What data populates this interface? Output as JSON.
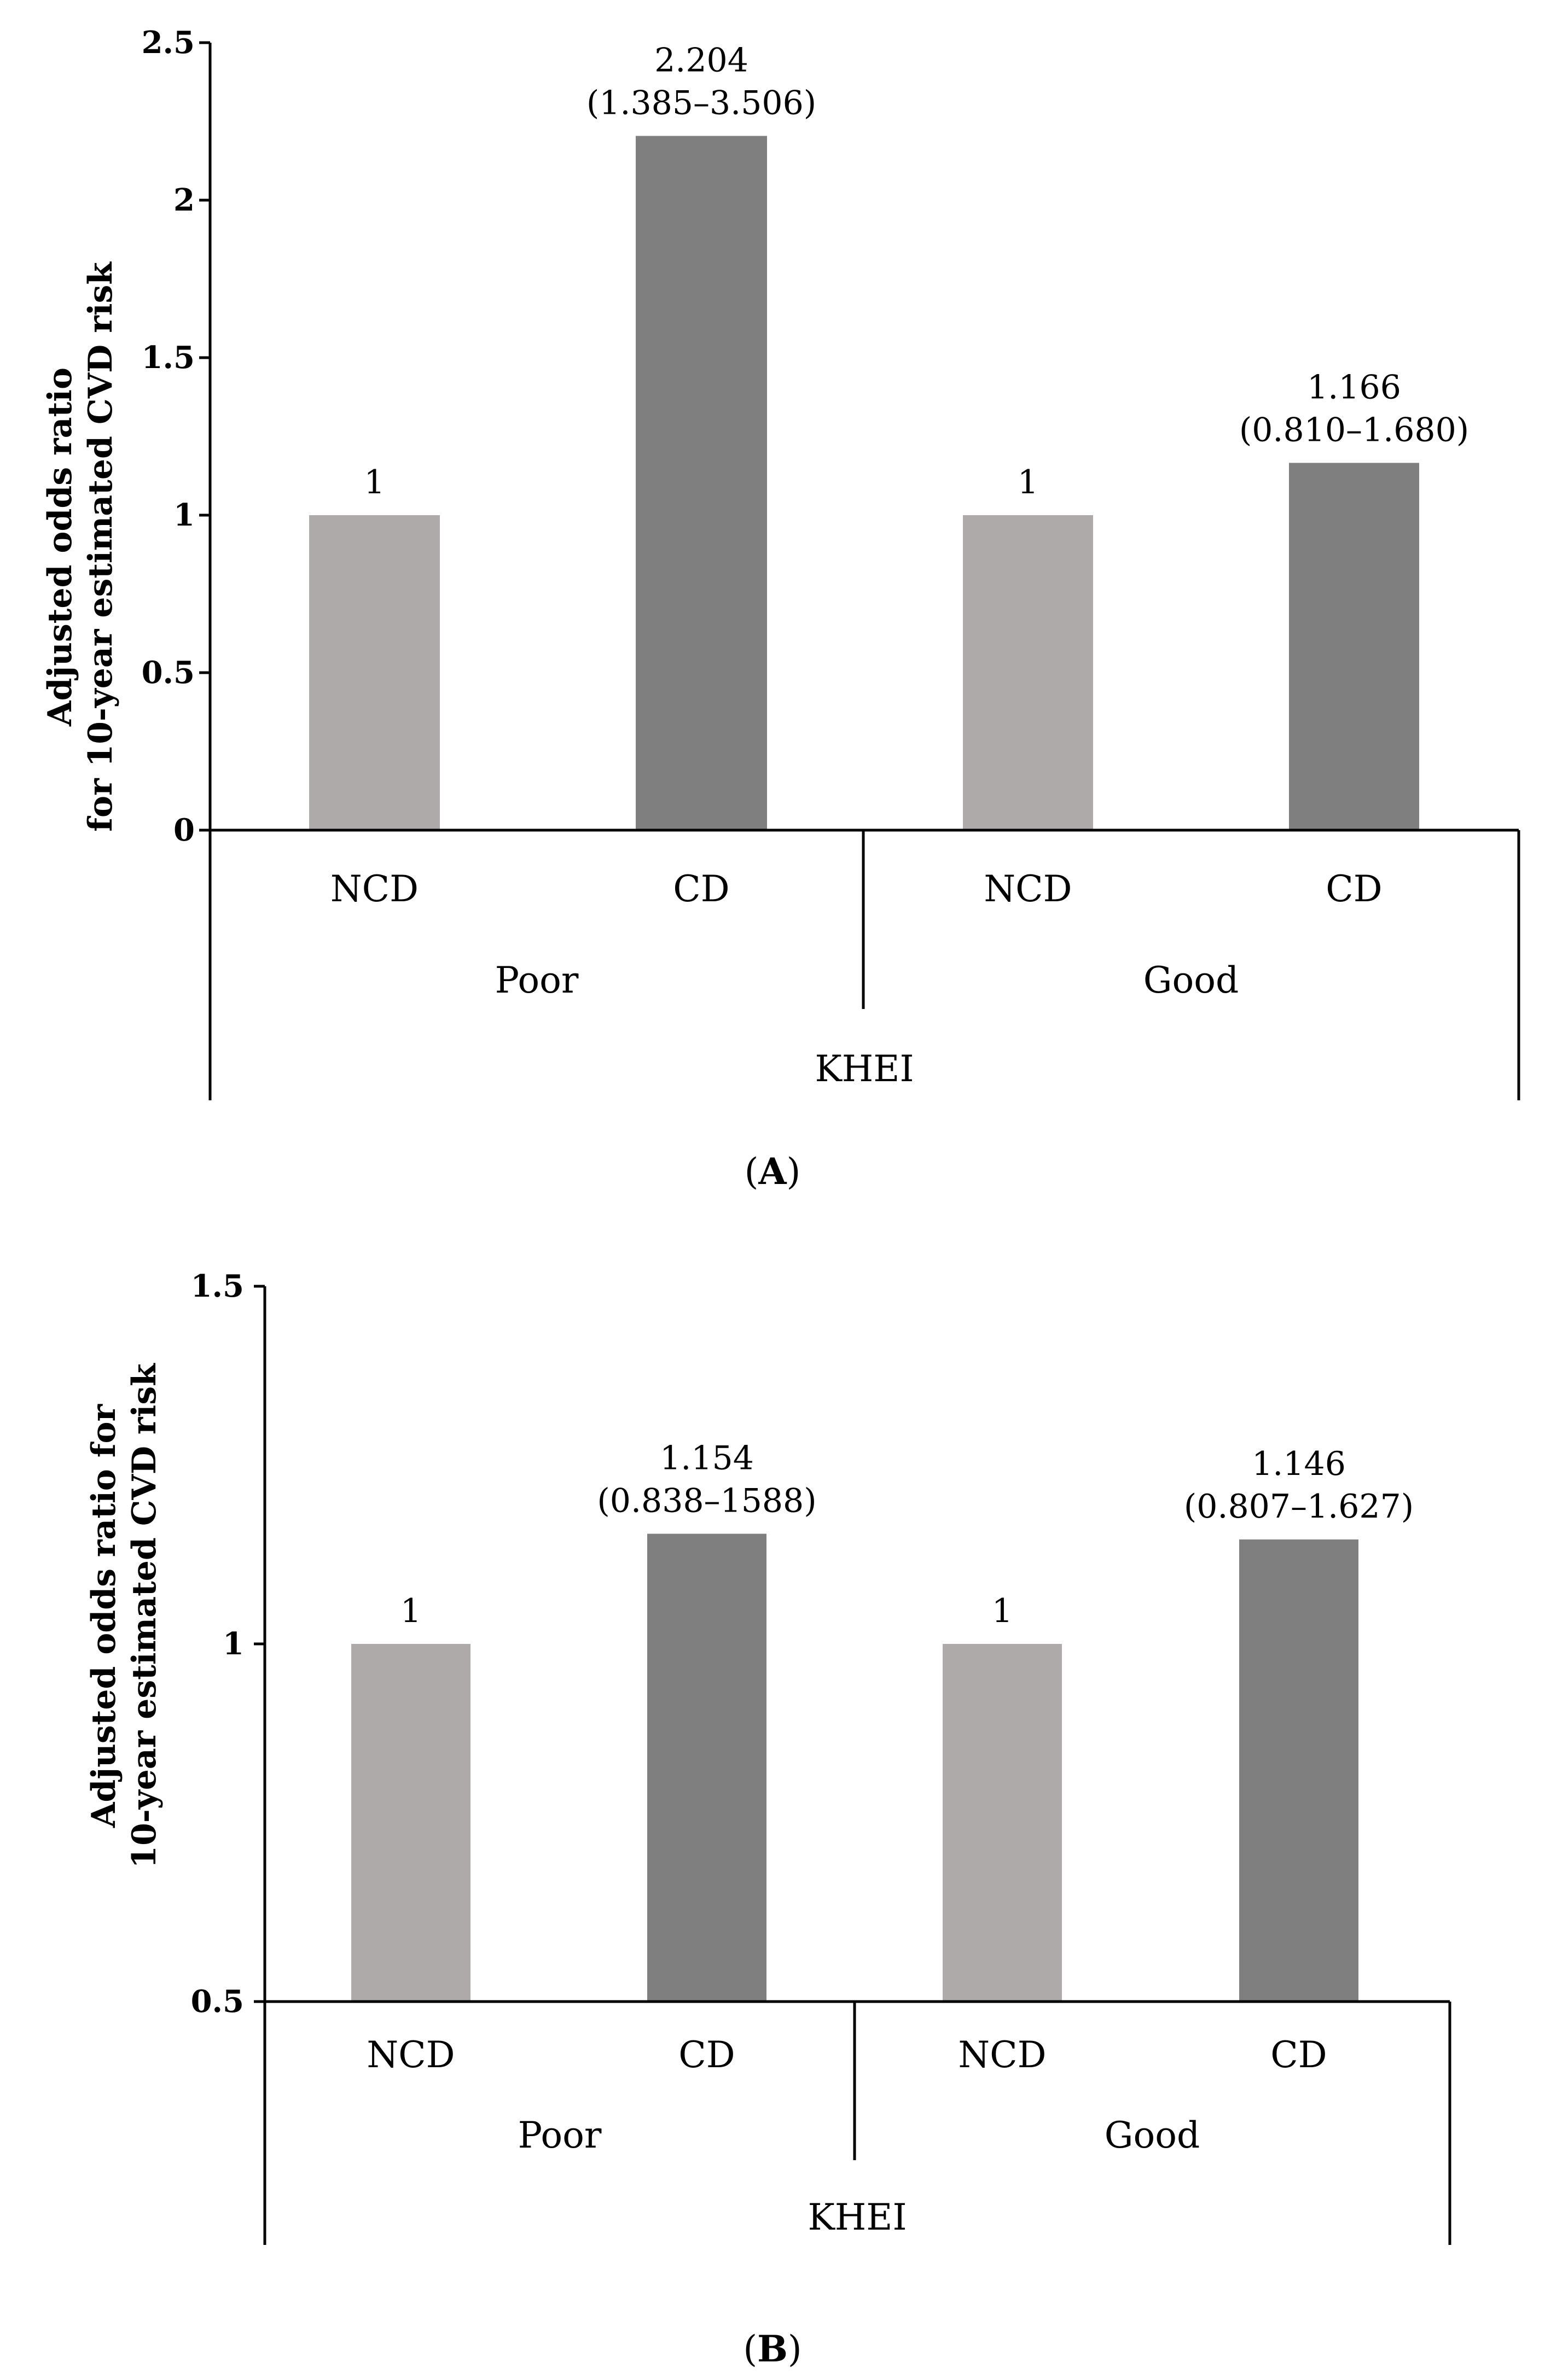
{
  "chart_data": [
    {
      "type": "bar",
      "panel_label": "A",
      "ylabel_lines": [
        "Adjusted odds ratio",
        "for 10-year estimated CVD risk"
      ],
      "ylim": [
        0,
        2.5
      ],
      "yticks": [
        "0",
        "0.5",
        "1",
        "1.5",
        "2",
        "2.5"
      ],
      "ytick_values": [
        0,
        0.5,
        1,
        1.5,
        2,
        2.5
      ],
      "categories": [
        "NCD",
        "CD",
        "NCD",
        "CD"
      ],
      "values": [
        1,
        2.204,
        1,
        1.166
      ],
      "data_labels": [
        [
          "1"
        ],
        [
          "2.204",
          "(1.385–3.506)"
        ],
        [
          "1"
        ],
        [
          "1.166",
          "(0.810–1.680)"
        ]
      ],
      "groups": [
        "Poor",
        "Good"
      ],
      "group_axis_title": "KHEI",
      "colors": [
        "#aeaaaa",
        "#7f7f7f",
        "#aeaaaa",
        "#7f7f7f"
      ],
      "grid": false,
      "legend": "none"
    },
    {
      "type": "bar",
      "panel_label": "B",
      "ylabel_lines": [
        "Adjusted odds ratio for",
        "10-year estimated CVD risk"
      ],
      "ylim": [
        0.5,
        1.5
      ],
      "yticks": [
        "0.5",
        "1",
        "1.5"
      ],
      "ytick_values": [
        0.5,
        1,
        1.5
      ],
      "categories": [
        "NCD",
        "CD",
        "NCD",
        "CD"
      ],
      "values": [
        1,
        1.154,
        1,
        1.146
      ],
      "data_labels": [
        [
          "1"
        ],
        [
          "1.154",
          "(0.838–1588)"
        ],
        [
          "1"
        ],
        [
          "1.146",
          "(0.807–1.627)"
        ]
      ],
      "groups": [
        "Poor",
        "Good"
      ],
      "group_axis_title": "KHEI",
      "colors": [
        "#aeaaaa",
        "#7f7f7f",
        "#aeaaaa",
        "#7f7f7f"
      ],
      "grid": false,
      "legend": "none"
    }
  ]
}
